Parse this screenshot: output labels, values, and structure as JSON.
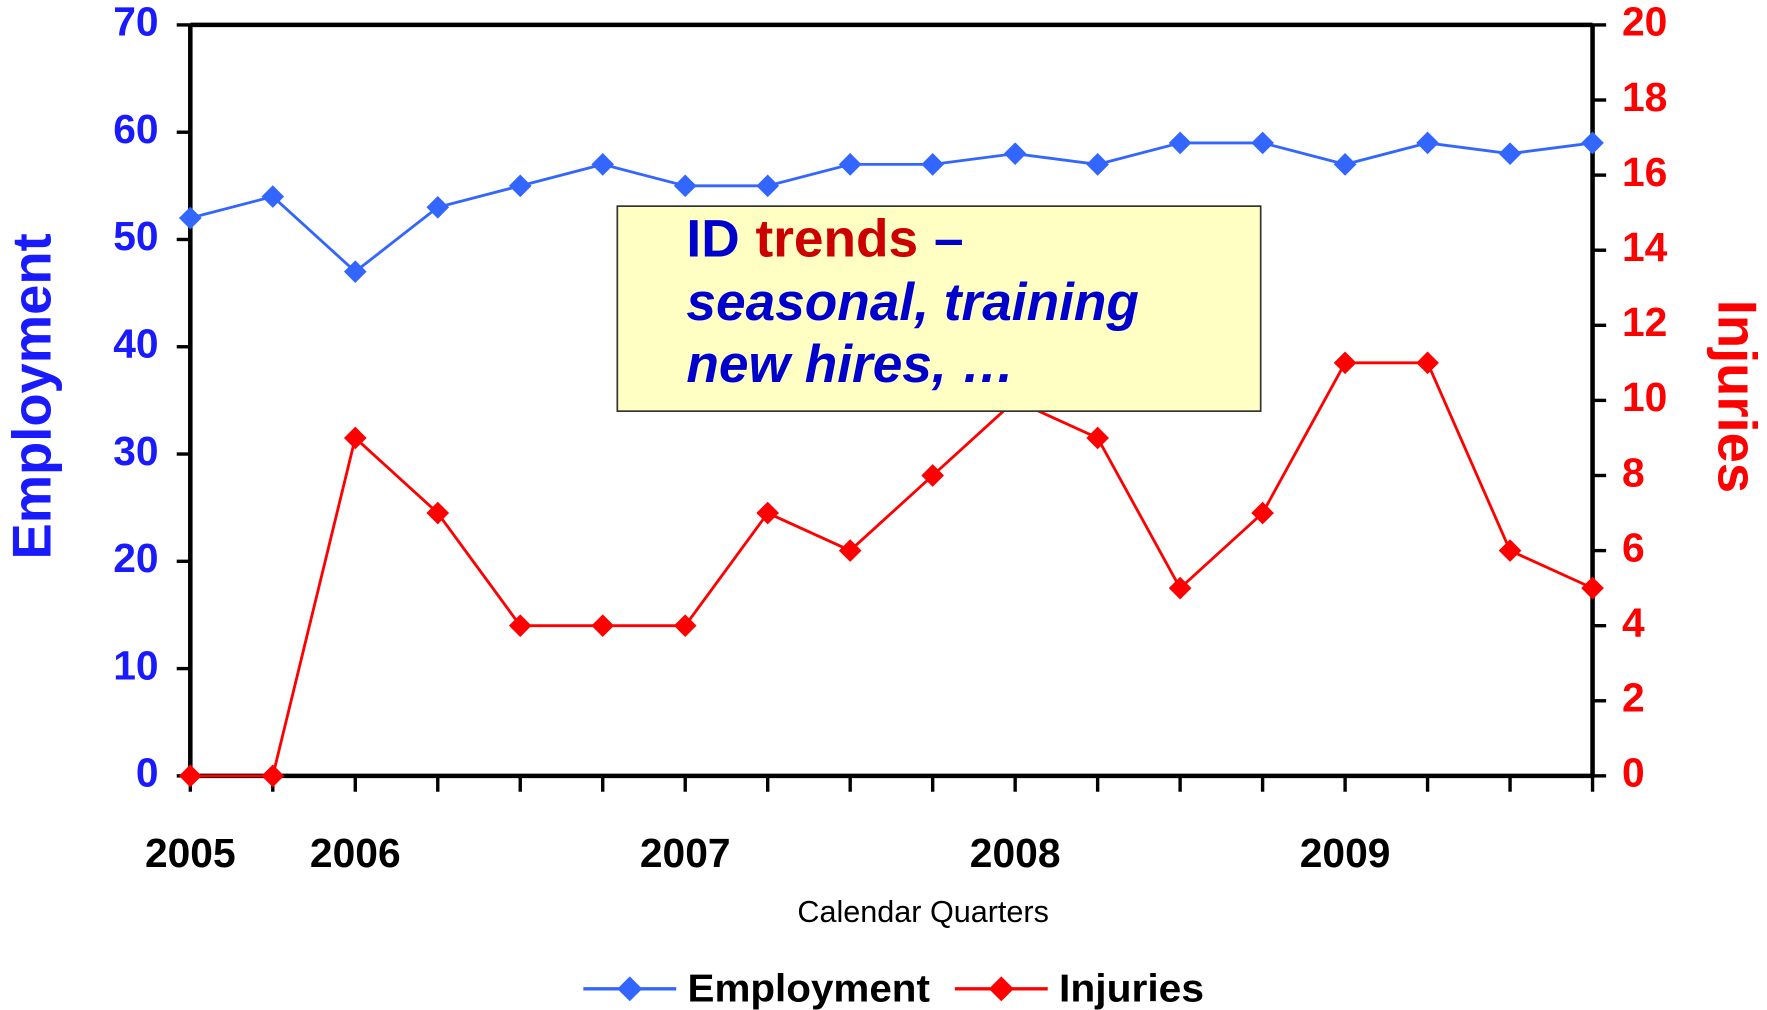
{
  "chart_data": {
    "type": "line",
    "x_label": "Calendar Quarters",
    "y_label": "Employment",
    "y2_label": "Injuries",
    "categories": [
      "2005",
      null,
      "2006",
      null,
      null,
      null,
      "2007",
      null,
      null,
      null,
      "2008",
      null,
      null,
      null,
      "2009",
      null,
      null,
      null
    ],
    "series": [
      {
        "name": "Employment",
        "color": "#3366ff",
        "axis": "y",
        "values": [
          52,
          54,
          47,
          53,
          55,
          57,
          55,
          55,
          57,
          57,
          58,
          57,
          59,
          59,
          57,
          59,
          58,
          59
        ]
      },
      {
        "name": "Injuries",
        "color": "#ff0000",
        "axis": "y2",
        "values": [
          0,
          0,
          9,
          7,
          4,
          4,
          4,
          7,
          6,
          8,
          10,
          9,
          5,
          7,
          11,
          11,
          6,
          5
        ]
      }
    ],
    "ylim": [
      0,
      70
    ],
    "yticks": [
      0,
      10,
      20,
      30,
      40,
      50,
      60,
      70
    ],
    "y2lim": [
      0,
      20
    ],
    "y2ticks": [
      0,
      2,
      4,
      6,
      8,
      10,
      12,
      14,
      16,
      18,
      20
    ],
    "y_color": "#1a1aff",
    "y2_color": "#ff0000",
    "legend": "bottom",
    "annotation": {
      "first_line": [
        {
          "text": "ID",
          "color": "#0000cc"
        },
        {
          "text": "trends",
          "color": "#cc0000"
        },
        {
          "text": "–",
          "color": "#0000cc"
        }
      ],
      "lines": [
        "seasonal, training",
        "new hires, …"
      ]
    }
  }
}
